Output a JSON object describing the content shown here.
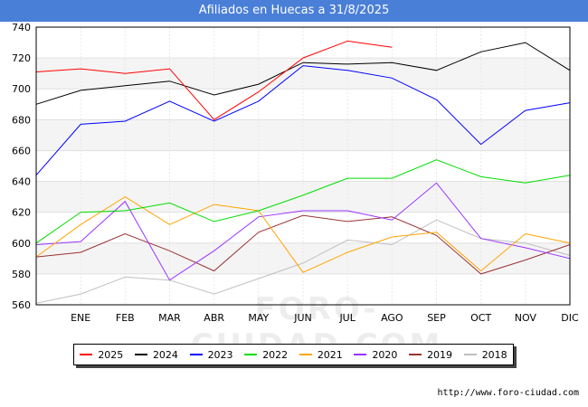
{
  "title": "Afiliados en Huecas a 31/8/2025",
  "source": "http://www.foro-ciudad.com",
  "watermark": "FORO-CIUDAD.COM",
  "chart_data": {
    "type": "line",
    "categories": [
      "",
      "ENE",
      "FEB",
      "MAR",
      "ABR",
      "MAY",
      "JUN",
      "JUL",
      "AGO",
      "SEP",
      "OCT",
      "NOV",
      "DIC"
    ],
    "ylim": [
      560,
      740
    ],
    "yticks": [
      560,
      580,
      600,
      620,
      640,
      660,
      680,
      700,
      720,
      740
    ],
    "grid": true,
    "legend_position": "bottom",
    "series": [
      {
        "name": "2025",
        "color": "#ff0000",
        "values": [
          711,
          713,
          710,
          713,
          680,
          698,
          720,
          731,
          727,
          null,
          null,
          null,
          null
        ]
      },
      {
        "name": "2024",
        "color": "#000000",
        "values": [
          690,
          699,
          702,
          705,
          696,
          703,
          717,
          716,
          717,
          712,
          724,
          730,
          712
        ]
      },
      {
        "name": "2023",
        "color": "#0000ff",
        "values": [
          644,
          677,
          679,
          692,
          679,
          692,
          715,
          712,
          707,
          693,
          664,
          686,
          691
        ]
      },
      {
        "name": "2022",
        "color": "#00dd00",
        "values": [
          600,
          620,
          621,
          626,
          614,
          621,
          631,
          642,
          642,
          654,
          643,
          639,
          644
        ]
      },
      {
        "name": "2021",
        "color": "#ffa500",
        "values": [
          591,
          612,
          630,
          612,
          625,
          621,
          581,
          594,
          604,
          607,
          582,
          606,
          600
        ]
      },
      {
        "name": "2020",
        "color": "#9933ff",
        "values": [
          599,
          601,
          627,
          576,
          595,
          617,
          621,
          621,
          615,
          639,
          603,
          597,
          590
        ]
      },
      {
        "name": "2019",
        "color": "#993333",
        "values": [
          591,
          594,
          606,
          595,
          582,
          607,
          618,
          614,
          617,
          605,
          580,
          589,
          599
        ]
      },
      {
        "name": "2018",
        "color": "#c0c0c0",
        "values": [
          561,
          567,
          578,
          576,
          567,
          577,
          587,
          602,
          599,
          615,
          603,
          600,
          592
        ]
      }
    ]
  }
}
